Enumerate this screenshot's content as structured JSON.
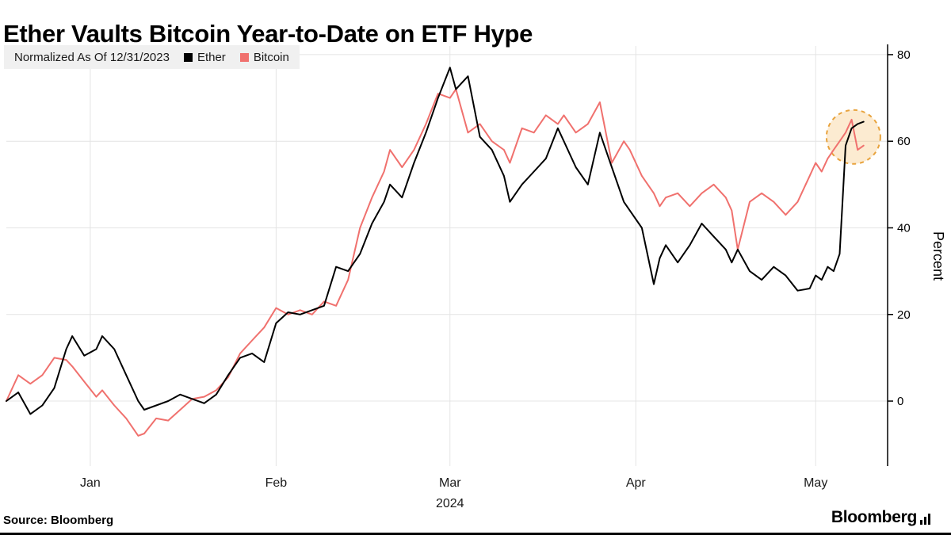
{
  "title": "Ether Vaults Bitcoin Year-to-Date on ETF Hype",
  "legend": {
    "note": "Normalized As Of 12/31/2023",
    "series": [
      {
        "label": "Ether",
        "color": "#000000"
      },
      {
        "label": "Bitcoin",
        "color": "#F0716E"
      }
    ]
  },
  "source": "Source: Bloomberg",
  "brand": "Bloomberg",
  "colors": {
    "grid": "#E4E4E4",
    "axis": "#000000",
    "legend_bg": "#F0F0F0"
  },
  "chart_data": {
    "type": "line",
    "title": "Ether Vaults Bitcoin Year-to-Date on ETF Hype",
    "note": "Normalized As Of 12/31/2023",
    "xlabel": "",
    "ylabel": "Percent",
    "x_unit": "days since 12/31/2023",
    "xlim": [
      0,
      147
    ],
    "ylim": [
      -15,
      82
    ],
    "yticks": [
      0,
      20,
      40,
      60,
      80
    ],
    "grid": true,
    "legend_position": "top-left",
    "xticks": [
      {
        "label": "Jan",
        "day": 14
      },
      {
        "label": "Feb",
        "day": 45
      },
      {
        "label": "Mar",
        "day": 74
      },
      {
        "label": "Apr",
        "day": 105
      },
      {
        "label": "May",
        "day": 135
      }
    ],
    "year_label": "2024",
    "year_under_day": 74,
    "x": [
      0,
      2,
      4,
      6,
      8,
      10,
      11,
      13,
      15,
      16,
      18,
      20,
      22,
      23,
      25,
      27,
      29,
      31,
      33,
      35,
      37,
      39,
      41,
      43,
      45,
      47,
      49,
      51,
      53,
      55,
      57,
      59,
      61,
      63,
      64,
      66,
      68,
      70,
      72,
      74,
      75,
      77,
      79,
      81,
      83,
      84,
      86,
      88,
      90,
      92,
      93,
      95,
      97,
      99,
      101,
      103,
      104,
      106,
      108,
      109,
      110,
      112,
      114,
      116,
      118,
      120,
      121,
      122,
      124,
      126,
      128,
      130,
      132,
      134,
      135,
      136,
      137,
      138,
      139,
      140,
      141,
      142,
      143
    ],
    "series": [
      {
        "name": "Ether",
        "color": "#000000",
        "values": [
          0,
          2,
          -3,
          -1,
          3,
          12,
          15,
          10.5,
          12,
          15,
          12,
          6,
          0,
          -2,
          -1,
          0,
          1.5,
          0.5,
          -0.5,
          1.5,
          6,
          10,
          11,
          9,
          18,
          20.5,
          20,
          21,
          22,
          31,
          30,
          34,
          41,
          46,
          50,
          47,
          55,
          62,
          70,
          77,
          72,
          75,
          61,
          58,
          52,
          46,
          50,
          53,
          56,
          63,
          60,
          54,
          50,
          62,
          54,
          46,
          44,
          40,
          27,
          33,
          36,
          32,
          36,
          41,
          38,
          35,
          32,
          35,
          30,
          28,
          31,
          29,
          25.5,
          26,
          29,
          28,
          31,
          30,
          34,
          59,
          63,
          64,
          64.5
        ]
      },
      {
        "name": "Bitcoin",
        "color": "#F0716E",
        "values": [
          0,
          6,
          4,
          6,
          10,
          9.5,
          8,
          4.5,
          1,
          2.5,
          -1,
          -4,
          -8,
          -7.5,
          -4,
          -4.5,
          -2,
          0.5,
          1,
          2.5,
          5.5,
          11,
          14,
          17,
          21.5,
          20,
          21,
          20,
          23,
          22,
          28,
          40,
          47,
          53,
          58,
          54,
          58,
          64,
          71,
          70,
          72,
          62,
          64,
          60,
          58,
          55,
          63,
          62,
          66,
          64,
          66,
          62,
          64,
          69,
          55,
          60,
          58,
          52,
          48,
          45,
          47,
          48,
          45,
          48,
          50,
          47,
          44,
          35,
          46,
          48,
          46,
          43,
          46,
          52,
          55,
          53,
          56,
          58,
          60,
          62,
          65,
          58,
          59
        ]
      }
    ],
    "highlight": {
      "day": 141.3,
      "value": 61,
      "radius": 34,
      "stroke": "#E8A33D",
      "fill": "rgba(244,183,88,0.28)"
    }
  }
}
